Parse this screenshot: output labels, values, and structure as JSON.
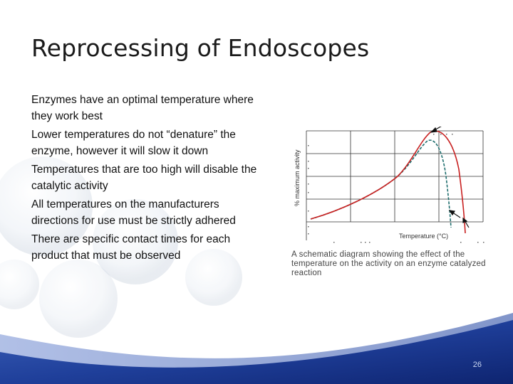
{
  "slide": {
    "title": "Reprocessing of Endoscopes",
    "bullets": [
      "Enzymes have an optimal temperature where they work best",
      "Lower temperatures do not “denature” the enzyme, however it will slow it down",
      "Temperatures that are too high will disable the catalytic activity",
      "All temperatures on the manufacturers directions for use must be strictly adhered",
      "There are specific contact times for each product that must be observed"
    ],
    "page_number": "26"
  },
  "figure": {
    "y_label": "% maximum activity",
    "x_label": "Temperature (°C)",
    "caption": "A schematic diagram showing the effect of the temperature on the activity on an enzyme catalyzed reaction",
    "colors": {
      "solid_curve": "#c82020",
      "dashed_curve": "#1f6e6e",
      "grid": "#333333"
    }
  }
}
